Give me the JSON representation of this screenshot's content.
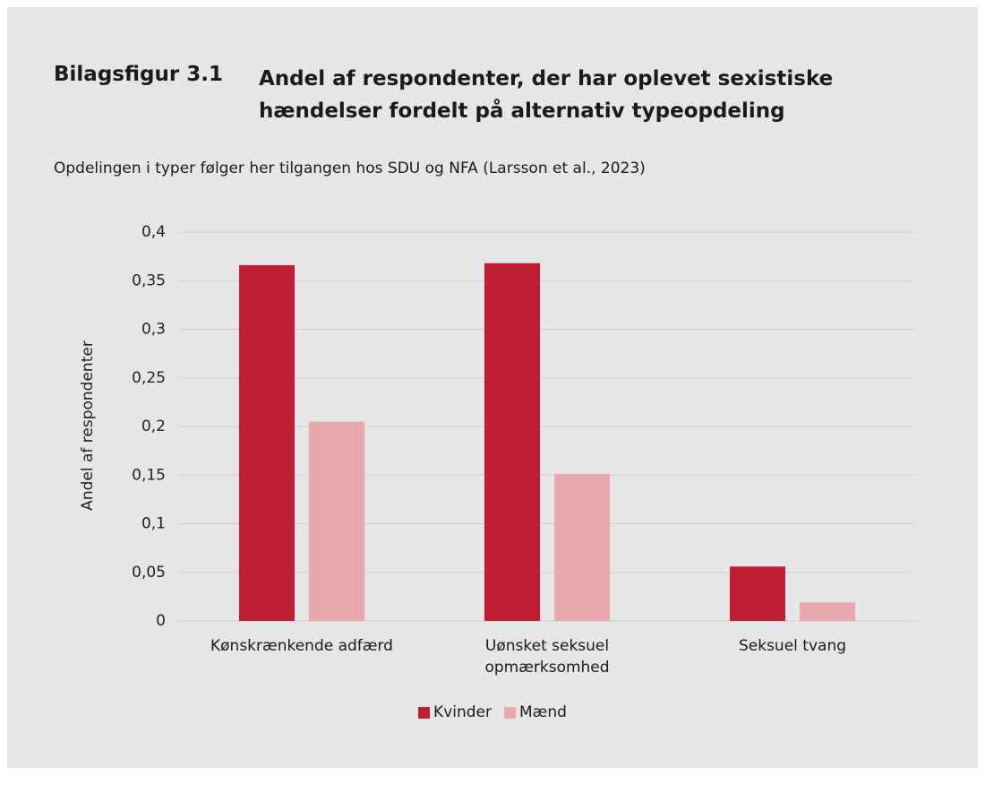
{
  "chart_data": {
    "type": "bar",
    "figure_label": "Bilagsfigur 3.1",
    "title": "Andel af respondenter, der har oplevet sexistiske hændelser fordelt på alternativ typeopdeling",
    "subtitle": "Opdelingen i typer følger her tilgangen hos SDU og NFA (Larsson et al., 2023)",
    "y_label": "Andel af respondenter",
    "categories": [
      "Kønskrænkende adfærd",
      "Uønsket seksuel opmærksomhed",
      "Seksuel tvang"
    ],
    "series": [
      {
        "name": "Kvinder",
        "color": "#c01f33",
        "values": [
          0.366,
          0.368,
          0.056
        ]
      },
      {
        "name": "Mænd",
        "color": "#e9a8ad",
        "values": [
          0.205,
          0.151,
          0.019
        ]
      }
    ],
    "ylim": [
      0,
      0.4
    ],
    "yticks": [
      0,
      {
        "value": 0.05,
        "label": "0,05"
      },
      {
        "value": 0.1,
        "label": "0,1"
      },
      {
        "value": 0.15,
        "label": "0,15"
      },
      {
        "value": 0.2,
        "label": "0,2"
      },
      {
        "value": 0.25,
        "label": "0,25"
      },
      {
        "value": 0.3,
        "label": "0,3"
      },
      {
        "value": 0.35,
        "label": "0,35"
      },
      {
        "value": 0.4,
        "label": "0,4"
      }
    ],
    "grid": true,
    "legend": "bottom"
  }
}
